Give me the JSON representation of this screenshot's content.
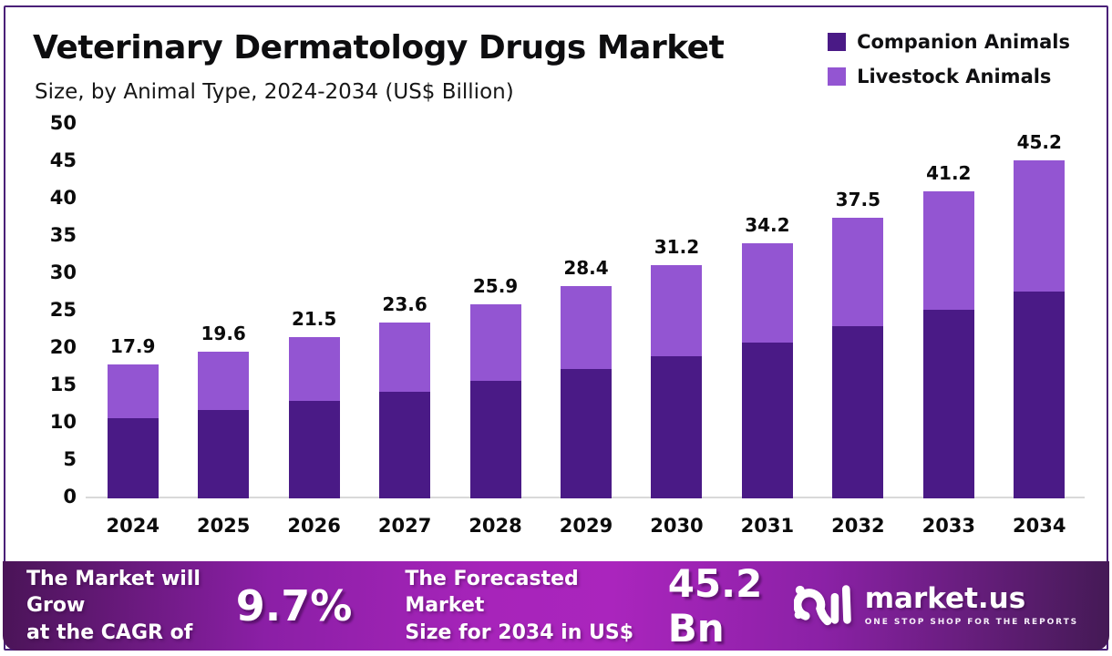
{
  "header": {
    "title": "Veterinary Dermatology Drugs Market",
    "subtitle": "Size, by Animal Type, 2024-2034 (US$ Billion)"
  },
  "legend": [
    {
      "label": "Companion Animals",
      "color": "#4a1a86"
    },
    {
      "label": "Livestock Animals",
      "color": "#9355d2"
    }
  ],
  "chart_data": {
    "type": "bar",
    "stacked": true,
    "title": "Veterinary Dermatology Drugs Market Size, by Animal Type, 2024-2034 (US$ Billion)",
    "xlabel": "",
    "ylabel": "US$ Billion",
    "ylim": [
      0,
      50
    ],
    "ytick_step": 5,
    "grid": false,
    "legend_position": "top-right",
    "categories": [
      "2024",
      "2025",
      "2026",
      "2027",
      "2028",
      "2029",
      "2030",
      "2031",
      "2032",
      "2033",
      "2034"
    ],
    "series": [
      {
        "name": "Companion Animals",
        "color": "#4a1a86",
        "values": [
          10.7,
          11.8,
          13.0,
          14.3,
          15.7,
          17.3,
          19.0,
          20.9,
          23.0,
          25.3,
          27.7
        ]
      },
      {
        "name": "Livestock Animals",
        "color": "#9355d2",
        "values": [
          7.2,
          7.8,
          8.5,
          9.3,
          10.2,
          11.1,
          12.2,
          13.3,
          14.5,
          15.9,
          17.5
        ]
      }
    ],
    "total_labels": [
      "17.9",
      "19.6",
      "21.5",
      "23.6",
      "25.9",
      "28.4",
      "31.2",
      "34.2",
      "37.5",
      "41.2",
      "45.2"
    ]
  },
  "footer": {
    "cagr_label": "The Market will Grow\nat the CAGR of",
    "cagr_value": "9.7%",
    "forecast_label": "The Forecasted Market\nSize for 2034 in US$",
    "forecast_value": "45.2 Bn",
    "brand": {
      "name": "market.us",
      "tagline": "ONE STOP SHOP FOR THE REPORTS"
    }
  },
  "colors": {
    "panel_border": "#4a2078",
    "axis_line": "#d9d9d9",
    "banner_start": "#4a1457",
    "banner_peak": "#aa25bd",
    "banner_end": "#441a55"
  }
}
